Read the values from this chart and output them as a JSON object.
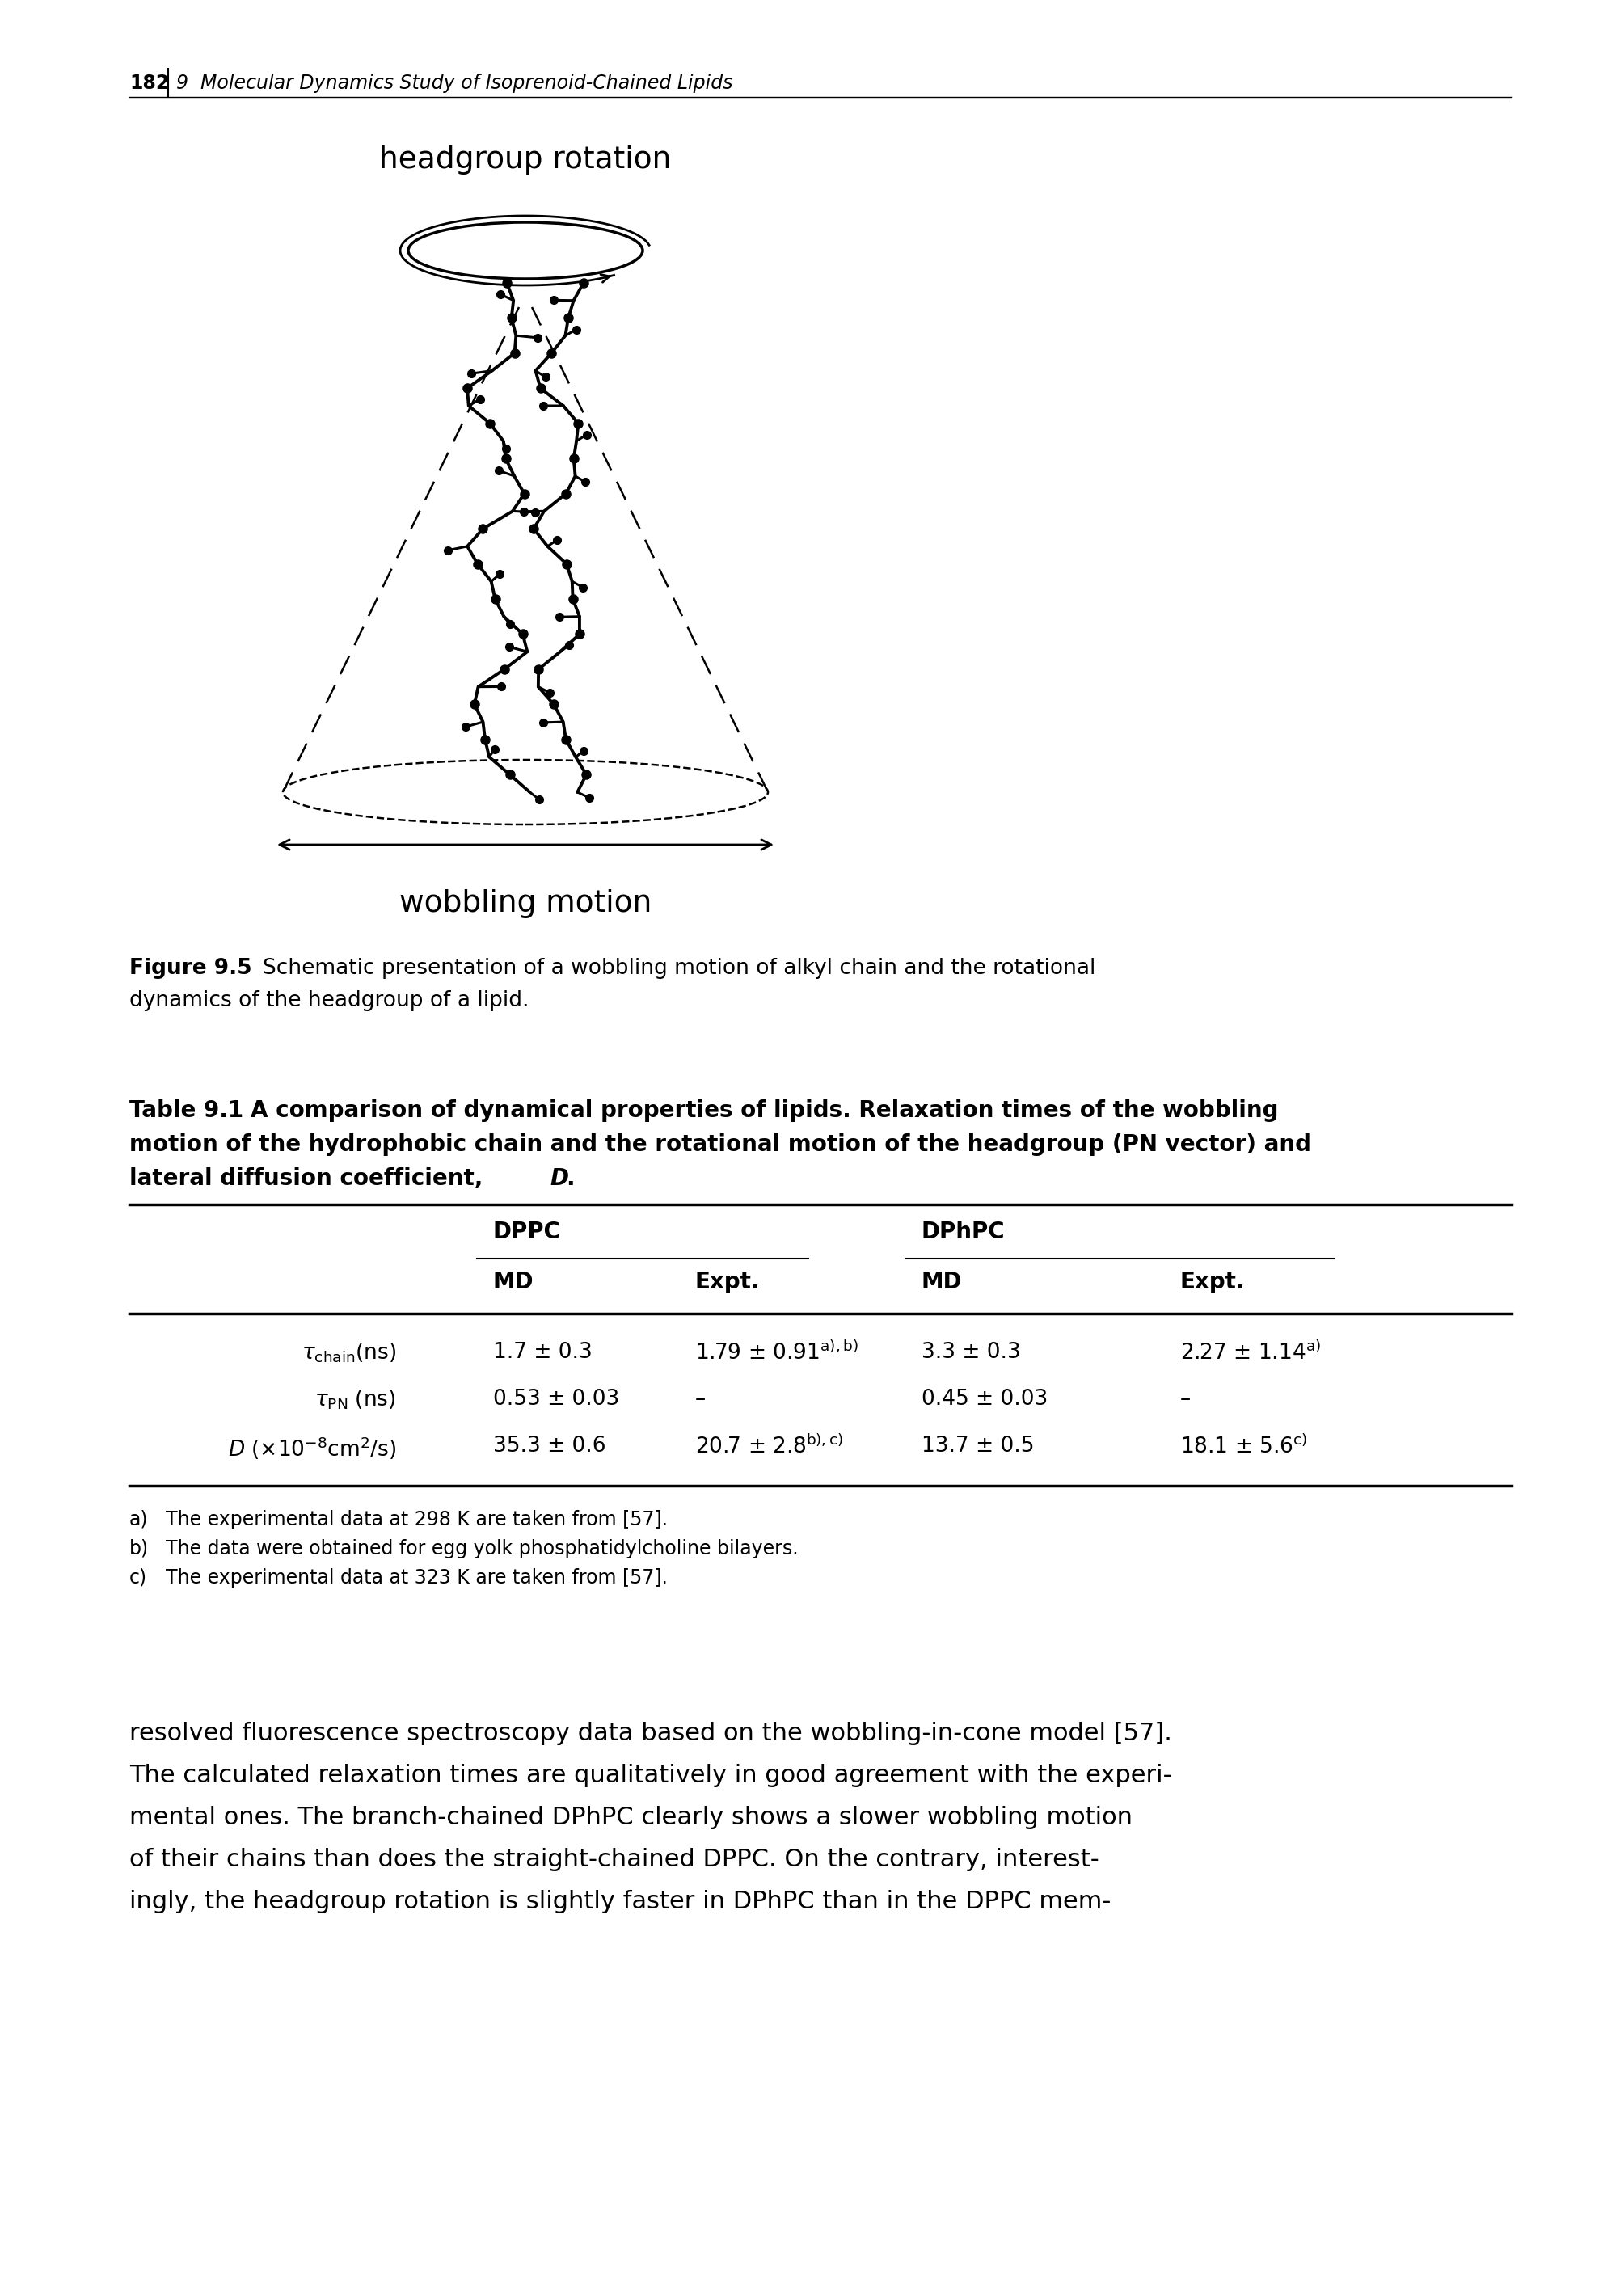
{
  "page_number": "182",
  "chapter_header": "9  Molecular Dynamics Study of Isoprenoid-Chained Lipids",
  "figure_label": "Figure 9.5",
  "figure_caption_bold": "Schematic presentation of ",
  "figure_caption_rest": "a wobbling motion of alkyl chain and the rotational\ndynamics of the headgroup of a lipid.",
  "figure_title_headgroup": "headgroup rotation",
  "figure_title_wobbling": "wobbling motion",
  "table_label": "Table 9.1",
  "table_caption_line1": "A comparison of dynamical properties of lipids. Relaxation times of the wobbling",
  "table_caption_line2": "motion of the hydrophobic chain and the rotational motion of the headgroup (PN vector) and",
  "table_caption_line3": "lateral diffusion coefficient, ",
  "table_caption_line3_italic": "D",
  "footnotes": [
    [
      "a)",
      "The experimental data at 298 K are taken from [57]."
    ],
    [
      "b)",
      "The data were obtained for egg yolk phosphatidylcholine bilayers."
    ],
    [
      "c)",
      "The experimental data at 323 K are taken from [57]."
    ]
  ],
  "body_text_lines": [
    "resolved fluorescence spectroscopy data based on the wobbling-in-cone model [57].",
    "The calculated relaxation times are qualitatively in good agreement with the experi-",
    "mental ones. The branch-chained DPhPC clearly shows a slower wobbling motion",
    "of their chains than does the straight-chained DPPC. On the contrary, interest-",
    "ingly, the headgroup rotation is slightly faster in DPhPC than in the DPPC mem-"
  ],
  "bg_color": "#ffffff",
  "text_color": "#000000"
}
